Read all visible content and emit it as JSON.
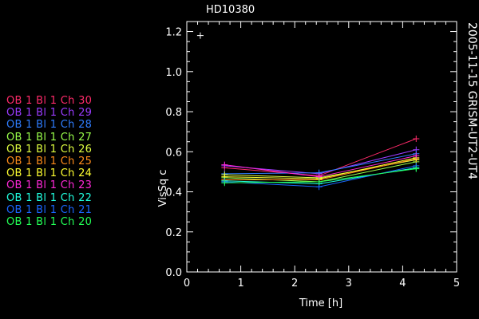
{
  "chart_data": {
    "type": "line",
    "title": "HD10380",
    "side_label": "2005-11-15 GRISM-UT2-UT4",
    "xlabel": "Time [h]",
    "ylabel": "VisSq c",
    "xlim": [
      0,
      5
    ],
    "ylim": [
      0.0,
      1.25
    ],
    "x_ticks": [
      "0",
      "1",
      "2",
      "3",
      "4",
      "5"
    ],
    "y_ticks": [
      "0.0",
      "0.2",
      "0.4",
      "0.6",
      "0.8",
      "1.0",
      "1.2"
    ],
    "x_tick_values": [
      0,
      1,
      2,
      3,
      4,
      5
    ],
    "y_tick_values": [
      0.0,
      0.2,
      0.4,
      0.6,
      0.8,
      1.0,
      1.2
    ],
    "x": [
      0.7,
      2.45,
      4.25
    ],
    "extra_marker": {
      "x": 0.25,
      "y": 1.18
    },
    "legend_position": "left",
    "series": [
      {
        "name": "OB 1 Bl 1 Ch 30",
        "color": "#ff2a6a",
        "values": [
          0.52,
          0.48,
          0.665
        ]
      },
      {
        "name": "OB 1 Bl 1 Ch 29",
        "color": "#9a3cff",
        "values": [
          0.53,
          0.49,
          0.61
        ]
      },
      {
        "name": "OB 1 Bl 1 Ch 28",
        "color": "#2f7dff",
        "values": [
          0.49,
          0.495,
          0.59
        ]
      },
      {
        "name": "OB 1 Bl 1 Ch 27",
        "color": "#9aff4a",
        "values": [
          0.47,
          0.45,
          0.55
        ]
      },
      {
        "name": "OB 1 Bl 1 Ch 26",
        "color": "#e0ff40",
        "values": [
          0.485,
          0.47,
          0.56
        ]
      },
      {
        "name": "OB 1 Bl 1 Ch 25",
        "color": "#ff8c1a",
        "values": [
          0.46,
          0.46,
          0.565
        ]
      },
      {
        "name": "OB 1 Bl 1 Ch 24",
        "color": "#ffff30",
        "values": [
          0.475,
          0.465,
          0.57
        ]
      },
      {
        "name": "OB 1 Bl 1 Ch 23",
        "color": "#ff28d8",
        "values": [
          0.535,
          0.475,
          0.58
        ]
      },
      {
        "name": "OB 1 Bl 1 Ch 22",
        "color": "#20ffe0",
        "values": [
          0.455,
          0.44,
          0.52
        ]
      },
      {
        "name": "OB 1 Bl 1 Ch 21",
        "color": "#1a66ff",
        "values": [
          0.45,
          0.425,
          0.53
        ]
      },
      {
        "name": "OB 1 Bl 1 Ch 20",
        "color": "#22ff55",
        "values": [
          0.445,
          0.45,
          0.515
        ]
      }
    ]
  }
}
